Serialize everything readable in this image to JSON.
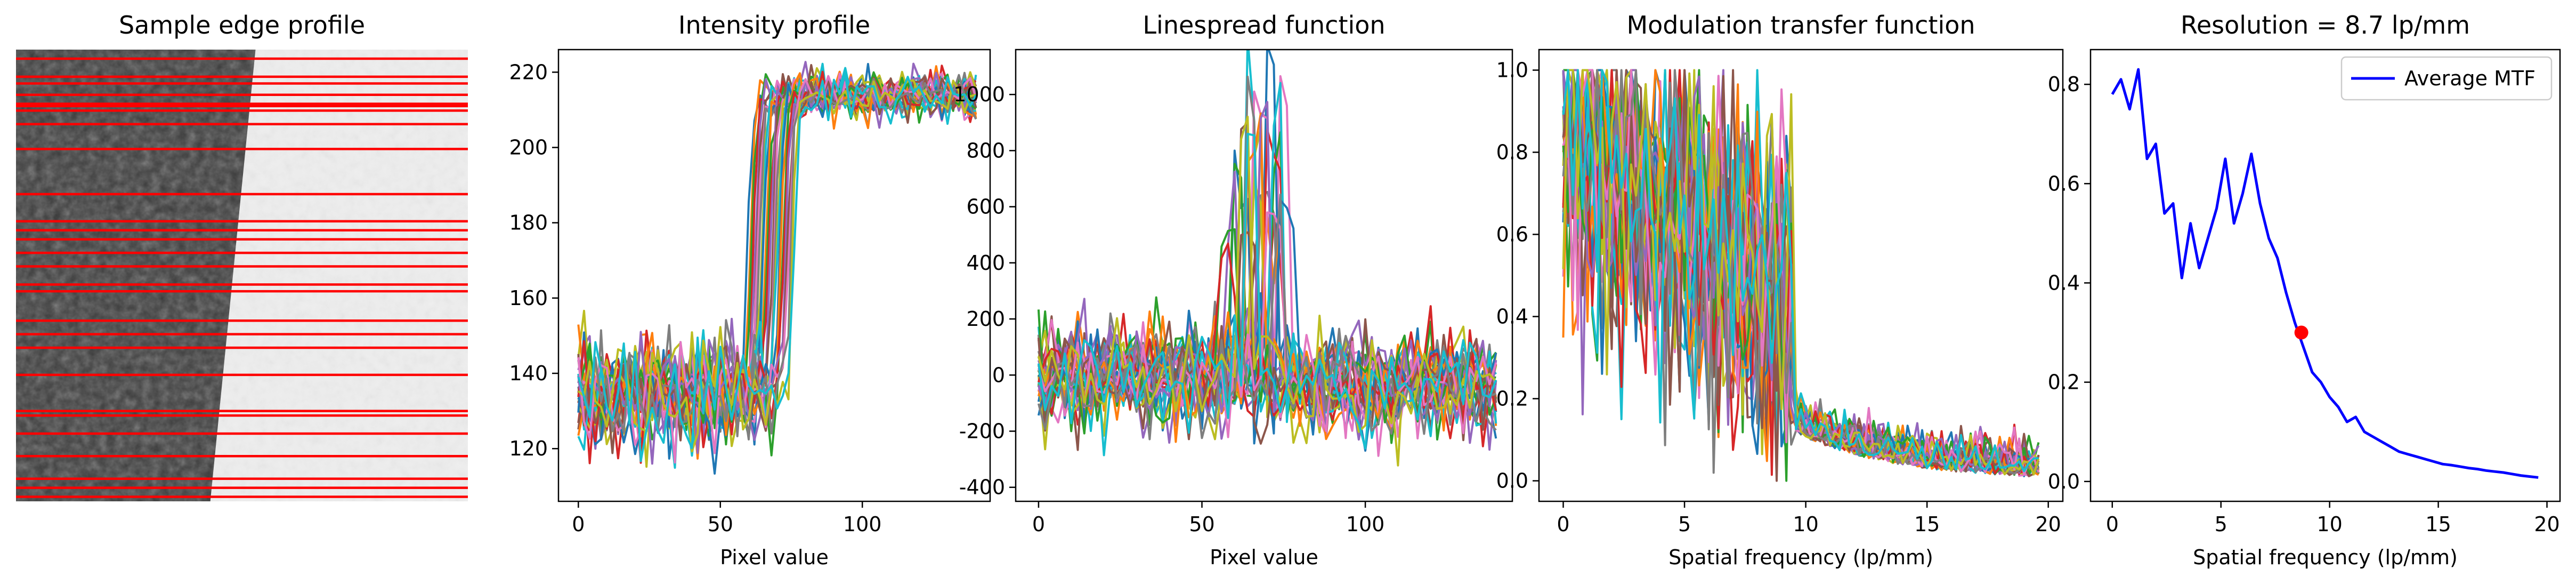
{
  "panels": [
    {
      "title": "Sample edge profile"
    },
    {
      "title": "Intensity profile",
      "xlabel": "Pixel value"
    },
    {
      "title": "Linespread function",
      "xlabel": "Pixel value"
    },
    {
      "title": "Modulation transfer function",
      "xlabel": "Spatial frequency (lp/mm)"
    },
    {
      "title": "Resolution = 8.7 lp/mm",
      "xlabel": "Spatial frequency (lp/mm)"
    }
  ],
  "colors": {
    "series_cycle": [
      "#1f77b4",
      "#ff7f0e",
      "#2ca02c",
      "#d62728",
      "#9467bd",
      "#8c564b",
      "#e377c2",
      "#7f7f7f",
      "#bcbd22",
      "#17becf"
    ],
    "mtf_line": "#0000ff",
    "marker": "#ff0000",
    "edge_lines": "#ff0000",
    "image_dark": "#3a3a3a",
    "image_light": "#eeeeee"
  },
  "chart_data": [
    {
      "type": "heatmap",
      "title": "Sample edge profile",
      "description_of_content": "grayscale image of an edge, dark region left, bright region right, overlaid with horizontal red sampling lines",
      "edge_x_fraction": [
        0.53,
        0.43
      ],
      "sampling_line_rows": [
        0.02,
        0.06,
        0.075,
        0.1,
        0.12,
        0.125,
        0.135,
        0.165,
        0.22,
        0.32,
        0.38,
        0.4,
        0.42,
        0.45,
        0.48,
        0.52,
        0.535,
        0.6,
        0.63,
        0.66,
        0.72,
        0.8,
        0.81,
        0.85,
        0.9,
        0.95,
        0.97,
        0.99
      ]
    },
    {
      "type": "line",
      "title": "Intensity profile",
      "xlabel": "Pixel value",
      "xlim": [
        -7,
        145
      ],
      "ylim": [
        106,
        226
      ],
      "xticks": [
        0,
        50,
        100
      ],
      "yticks": [
        120,
        140,
        160,
        180,
        200,
        220
      ],
      "n_series": 30,
      "x_range": [
        0,
        140
      ],
      "low_level": 135,
      "low_noise": 7,
      "high_level": 214,
      "high_noise": 3,
      "edge_x_range": [
        60,
        76
      ]
    },
    {
      "type": "line",
      "title": "Linespread function",
      "xlabel": "Pixel value",
      "xlim": [
        -7,
        145
      ],
      "ylim": [
        -450,
        1160
      ],
      "xticks": [
        0,
        50,
        100
      ],
      "yticks": [
        -400,
        -200,
        0,
        200,
        400,
        600,
        800,
        1000
      ],
      "n_series": 30,
      "x_range": [
        0,
        140
      ],
      "baseline_noise": 90,
      "peak_range": [
        350,
        1100
      ],
      "peak_x_range": [
        58,
        76
      ]
    },
    {
      "type": "line",
      "title": "Modulation transfer function",
      "xlabel": "Spatial frequency (lp/mm)",
      "xlim": [
        -1,
        20.6
      ],
      "ylim": [
        -0.05,
        1.05
      ],
      "xticks": [
        0,
        5,
        10,
        15,
        20
      ],
      "yticks": [
        0.0,
        0.2,
        0.4,
        0.6,
        0.8,
        1.0
      ],
      "n_series": 30,
      "x_range": [
        0,
        19.6
      ],
      "cutoff_x": 9.5
    },
    {
      "type": "line",
      "title": "Resolution = 8.7 lp/mm",
      "xlabel": "Spatial frequency (lp/mm)",
      "xlim": [
        -1,
        20.6
      ],
      "ylim": [
        -0.04,
        0.87
      ],
      "xticks": [
        0,
        5,
        10,
        15,
        20
      ],
      "yticks": [
        0.0,
        0.2,
        0.4,
        0.6,
        0.8
      ],
      "legend": {
        "label": "Average MTF",
        "placement": "top-right"
      },
      "series": [
        {
          "name": "Average MTF",
          "x": [
            0,
            0.4,
            0.8,
            1.2,
            1.6,
            2.0,
            2.4,
            2.8,
            3.2,
            3.6,
            4.0,
            4.4,
            4.8,
            5.2,
            5.6,
            6.0,
            6.4,
            6.8,
            7.2,
            7.6,
            8.0,
            8.4,
            8.8,
            9.2,
            9.6,
            10.0,
            10.4,
            10.8,
            11.2,
            11.6,
            12.0,
            12.4,
            12.8,
            13.2,
            13.6,
            14.0,
            14.4,
            14.8,
            15.2,
            15.6,
            16.0,
            16.4,
            16.8,
            17.2,
            17.6,
            18.0,
            18.4,
            18.8,
            19.2,
            19.6
          ],
          "y": [
            0.78,
            0.81,
            0.75,
            0.83,
            0.65,
            0.68,
            0.54,
            0.56,
            0.41,
            0.52,
            0.43,
            0.49,
            0.55,
            0.65,
            0.52,
            0.58,
            0.66,
            0.56,
            0.49,
            0.45,
            0.38,
            0.32,
            0.27,
            0.22,
            0.2,
            0.17,
            0.15,
            0.12,
            0.13,
            0.1,
            0.09,
            0.08,
            0.07,
            0.06,
            0.055,
            0.05,
            0.045,
            0.04,
            0.035,
            0.033,
            0.03,
            0.027,
            0.025,
            0.022,
            0.02,
            0.018,
            0.015,
            0.012,
            0.01,
            0.008
          ]
        }
      ],
      "marker_point": {
        "x": 8.7,
        "y": 0.3
      }
    }
  ]
}
